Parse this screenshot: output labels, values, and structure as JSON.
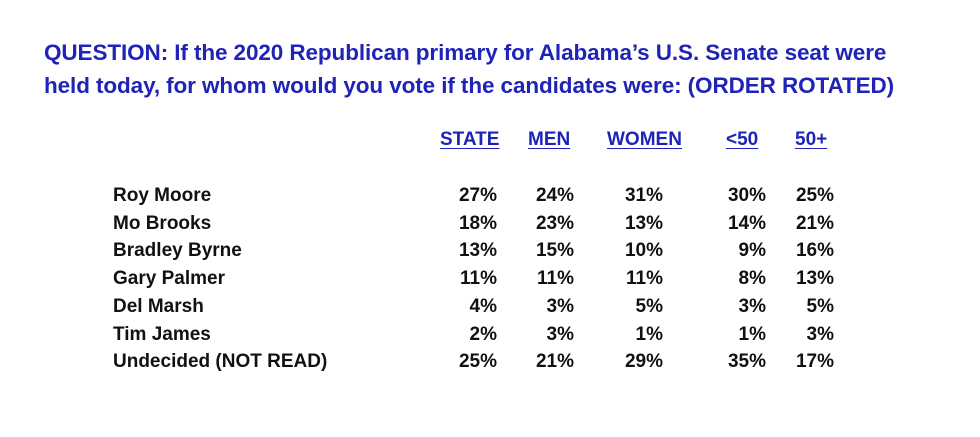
{
  "question": {
    "line1": "QUESTION: If the 2020 Republican primary for Alabama’s U.S. Senate seat were",
    "line2": "held today, for whom would you vote if the candidates were: (ORDER ROTATED)"
  },
  "columns": [
    "STATE",
    "MEN",
    "WOMEN",
    "<50",
    "50+"
  ],
  "rows": [
    {
      "label": "Roy Moore",
      "values": [
        "27%",
        "24%",
        "31%",
        "30%",
        "25%"
      ]
    },
    {
      "label": "Mo Brooks",
      "values": [
        "18%",
        "23%",
        "13%",
        "14%",
        "21%"
      ]
    },
    {
      "label": "Bradley Byrne",
      "values": [
        "13%",
        "15%",
        "10%",
        "9%",
        "16%"
      ]
    },
    {
      "label": "Gary Palmer",
      "values": [
        "11%",
        "11%",
        "11%",
        "8%",
        "13%"
      ]
    },
    {
      "label": "Del Marsh",
      "values": [
        "4%",
        "3%",
        "5%",
        "3%",
        "5%"
      ]
    },
    {
      "label": "Tim James",
      "values": [
        "2%",
        "3%",
        "1%",
        "1%",
        "3%"
      ]
    },
    {
      "label": "Undecided (NOT READ)",
      "values": [
        "25%",
        "21%",
        "29%",
        "35%",
        "17%"
      ]
    }
  ],
  "chart_data": {
    "type": "table",
    "title": "QUESTION: If the 2020 Republican primary for Alabama’s U.S. Senate seat were held today, for whom would you vote if the candidates were: (ORDER ROTATED)",
    "columns": [
      "STATE",
      "MEN",
      "WOMEN",
      "<50",
      "50+"
    ],
    "rows": [
      [
        "Roy Moore",
        "27%",
        "24%",
        "31%",
        "30%",
        "25%"
      ],
      [
        "Mo Brooks",
        "18%",
        "23%",
        "13%",
        "14%",
        "21%"
      ],
      [
        "Bradley Byrne",
        "13%",
        "15%",
        "10%",
        "9%",
        "16%"
      ],
      [
        "Gary Palmer",
        "11%",
        "11%",
        "11%",
        "8%",
        "13%"
      ],
      [
        "Del Marsh",
        "4%",
        "3%",
        "5%",
        "3%",
        "5%"
      ],
      [
        "Tim James",
        "2%",
        "3%",
        "1%",
        "1%",
        "3%"
      ],
      [
        "Undecided (NOT READ)",
        "25%",
        "21%",
        "29%",
        "35%",
        "17%"
      ]
    ]
  }
}
